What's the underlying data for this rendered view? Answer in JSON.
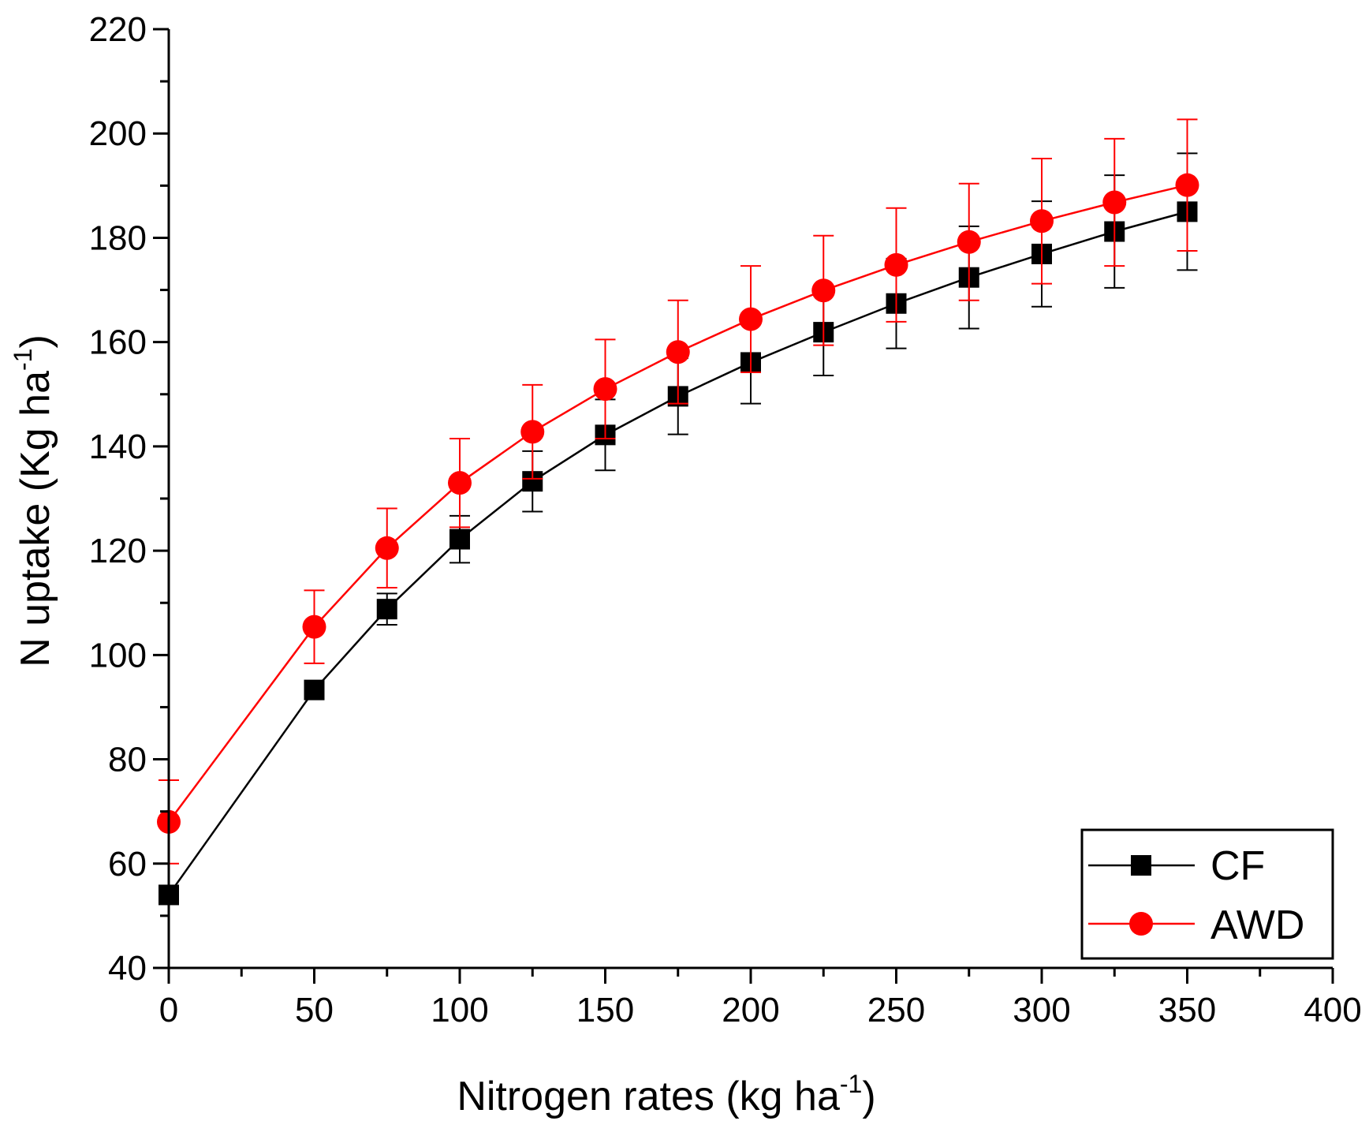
{
  "colors": {
    "CF": "#000000",
    "AWD": "#ff0000"
  },
  "chart_data": {
    "type": "line",
    "title": "",
    "xlabel": "Nitrogen rates (kg ha",
    "xlabel_sup": "-1",
    "xlabel_end": ")",
    "ylabel": "N uptake (Kg ha",
    "ylabel_sup": "-1",
    "ylabel_end": ")",
    "xlim": [
      0,
      400
    ],
    "ylim": [
      40,
      220
    ],
    "xticks": [
      "0",
      "50",
      "100",
      "150",
      "200",
      "250",
      "300",
      "350",
      "400"
    ],
    "yticks": [
      "40",
      "60",
      "80",
      "100",
      "120",
      "140",
      "160",
      "180",
      "200",
      "220"
    ],
    "legend_position": "bottom-right",
    "x": [
      0,
      50,
      75,
      100,
      125,
      150,
      175,
      200,
      225,
      250,
      275,
      300,
      325,
      350
    ],
    "series": [
      {
        "name": "CF",
        "marker": "square",
        "values": [
          54,
          93.3,
          108.8,
          122.2,
          133.3,
          142.2,
          149.6,
          156.1,
          161.9,
          167.4,
          172.4,
          176.9,
          181.2,
          185.0
        ],
        "error": [
          0,
          0,
          3.0,
          4.5,
          5.8,
          6.8,
          7.3,
          7.9,
          8.3,
          8.6,
          9.8,
          10.1,
          10.8,
          11.2
        ]
      },
      {
        "name": "AWD",
        "marker": "circle",
        "values": [
          68,
          105.4,
          120.5,
          133.0,
          142.8,
          151.0,
          158.1,
          164.4,
          169.9,
          174.8,
          179.2,
          183.2,
          186.8,
          190.1
        ],
        "error": [
          8.0,
          7.0,
          7.6,
          8.5,
          9.0,
          9.5,
          9.9,
          10.2,
          10.5,
          10.9,
          11.2,
          12.0,
          12.2,
          12.6
        ]
      }
    ]
  }
}
